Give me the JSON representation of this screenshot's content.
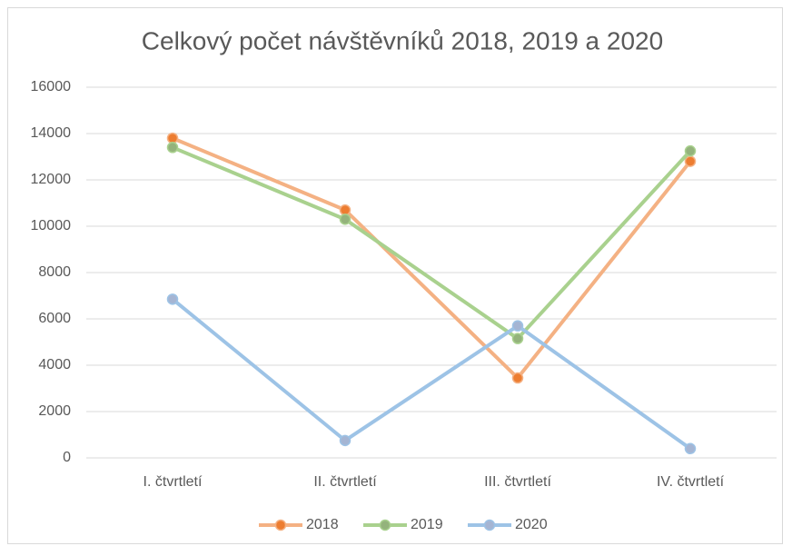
{
  "chart_data": {
    "type": "line",
    "title": "Celkový počet návštěvníků 2018, 2019 a 2020",
    "categories": [
      "I. čtvrtletí",
      "II. čtvrtletí",
      "III. čtvrtletí",
      "IV. čtvrtletí"
    ],
    "series": [
      {
        "name": "2018",
        "color": "#f4b183",
        "marker_color": "#ed7d31",
        "values": [
          13800,
          10700,
          3450,
          12800
        ]
      },
      {
        "name": "2019",
        "color": "#a9d18e",
        "marker_color": "#94b37c",
        "values": [
          13400,
          10300,
          5150,
          13250
        ]
      },
      {
        "name": "2020",
        "color": "#9dc3e6",
        "marker_color": "#a5b5d3",
        "values": [
          6850,
          750,
          5700,
          400
        ]
      }
    ],
    "ylim": [
      0,
      16000
    ],
    "yticks": [
      0,
      2000,
      4000,
      6000,
      8000,
      10000,
      12000,
      14000,
      16000
    ],
    "grid": true,
    "legend": "bottom"
  }
}
